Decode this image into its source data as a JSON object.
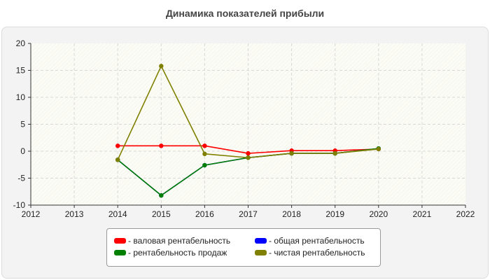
{
  "chart_data": {
    "type": "line",
    "title": "Динамика показателей прибыли",
    "xlabel": "",
    "ylabel": "",
    "xlim": [
      2012,
      2022
    ],
    "ylim": [
      -10,
      20
    ],
    "x_ticks": [
      "2012",
      "2013",
      "2014",
      "2015",
      "2016",
      "2017",
      "2018",
      "2019",
      "2020",
      "2021",
      "2022"
    ],
    "y_ticks": [
      "20",
      "15",
      "10",
      "5",
      "0",
      "-5",
      "-10"
    ],
    "grid": true,
    "legend_position": "bottom",
    "x": [
      2014,
      2015,
      2016,
      2017,
      2018,
      2019,
      2020
    ],
    "series": [
      {
        "name": "- валовая рентабельность",
        "color": "#ff0000",
        "values": [
          1.0,
          1.0,
          1.0,
          -0.4,
          0.1,
          0.1,
          0.4
        ]
      },
      {
        "name": "- общая рентабельность",
        "color": "#0000ff",
        "values": [
          -1.6,
          -8.2,
          -2.6,
          -1.2,
          -0.4,
          -0.4,
          0.5
        ]
      },
      {
        "name": "- рентабельность продаж",
        "color": "#008000",
        "values": [
          -1.6,
          -8.2,
          -2.6,
          -1.2,
          -0.4,
          -0.4,
          0.5
        ]
      },
      {
        "name": "- чистая рентабельность",
        "color": "#808000",
        "values": [
          -1.6,
          15.8,
          -0.5,
          -1.2,
          -0.4,
          -0.4,
          0.4
        ]
      }
    ]
  }
}
